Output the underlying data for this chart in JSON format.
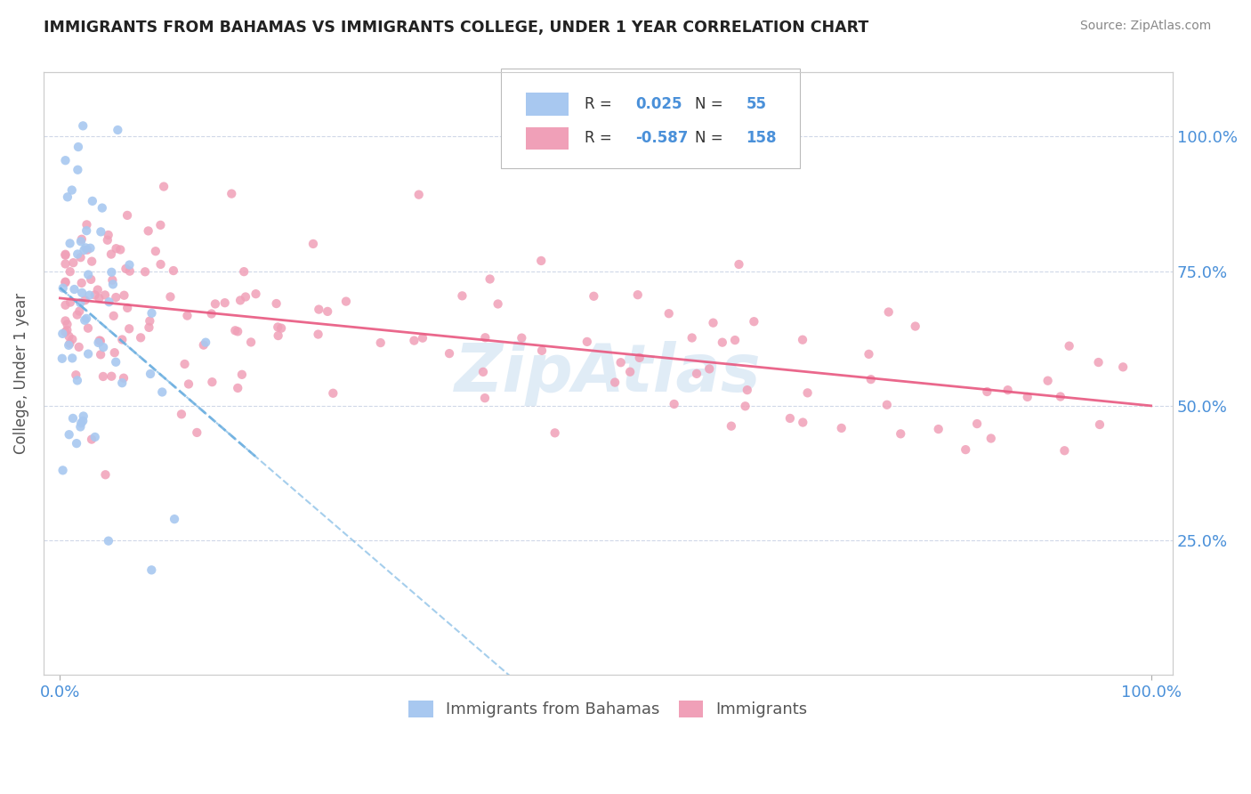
{
  "title": "IMMIGRANTS FROM BAHAMAS VS IMMIGRANTS COLLEGE, UNDER 1 YEAR CORRELATION CHART",
  "source_text": "Source: ZipAtlas.com",
  "ylabel": "College, Under 1 year",
  "series1_color": "#a8c8f0",
  "series2_color": "#f0a0b8",
  "series1_label": "Immigrants from Bahamas",
  "series2_label": "Immigrants",
  "R1": 0.025,
  "N1": 55,
  "R2": -0.587,
  "N2": 158,
  "trendline1_color": "#6aaee0",
  "trendline2_color": "#e85880",
  "watermark": "ZipAtlas",
  "watermark_color": "#c8ddf0",
  "title_color": "#222222",
  "axis_label_color": "#4a90d9",
  "legend_text_color": "#333333",
  "legend_value_color": "#4a90d9",
  "legend_R2_color": "#e85880",
  "grid_color": "#d0d8e8",
  "background_color": "#ffffff"
}
